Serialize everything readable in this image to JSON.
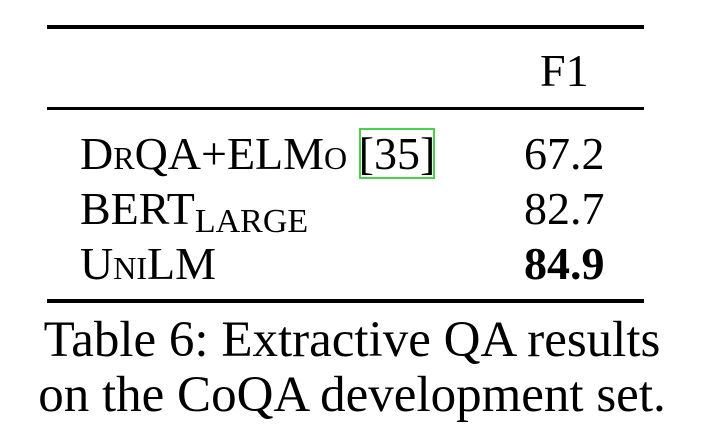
{
  "table": {
    "header": [
      "",
      "F1"
    ],
    "rows": [
      {
        "name": "DrQA+ELMo",
        "citation": "[35]",
        "value": "67.2",
        "bold": false
      },
      {
        "name": "BERT",
        "subscript": "LARGE",
        "value": "82.7",
        "bold": false
      },
      {
        "name": "UniLM",
        "value": "84.9",
        "bold": true
      }
    ]
  },
  "caption": [
    "Table 6: Extractive QA results",
    "on the CoQA development set."
  ]
}
